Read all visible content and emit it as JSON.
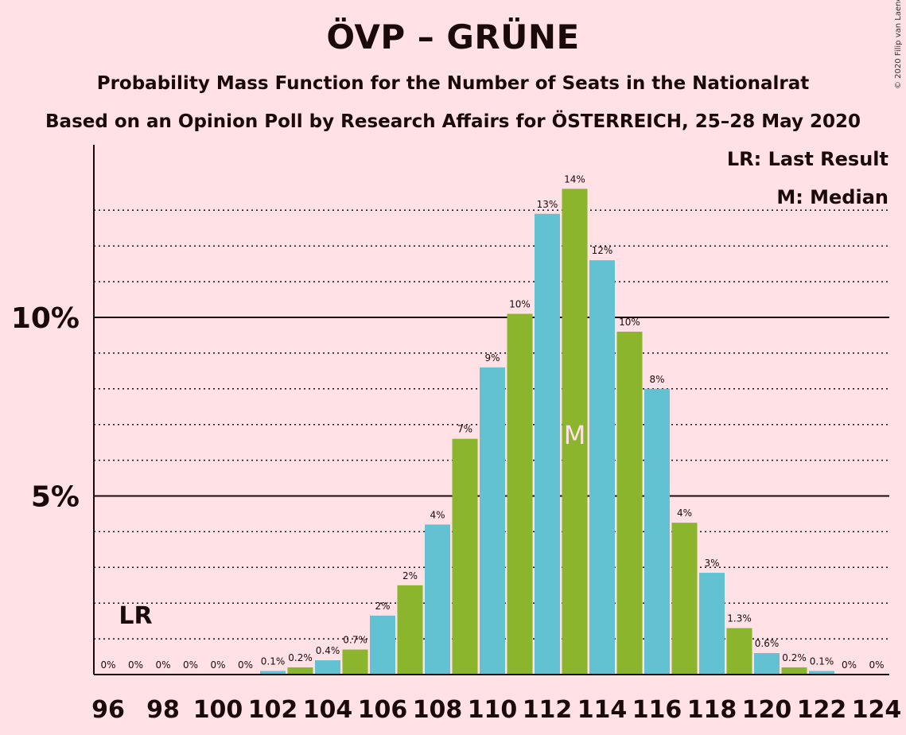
{
  "title": "ÖVP – GRÜNE",
  "subtitle": "Probability Mass Function for the Number of Seats in the Nationalrat",
  "subtitle2": "Based on an Opinion Poll by Research Affairs for ÖSTERREICH, 25–28 May 2020",
  "copyright": "© 2020 Filip van Laenen",
  "legend": {
    "last_result": "LR: Last Result",
    "median": "M: Median"
  },
  "colors": {
    "background": "#ffe1e6",
    "green": "#8ab52c",
    "blue": "#63c2d1",
    "axis": "#1a0a0a"
  },
  "chart_data": {
    "type": "bar",
    "x": [
      96,
      97,
      98,
      99,
      100,
      101,
      102,
      103,
      104,
      105,
      106,
      107,
      108,
      109,
      110,
      111,
      112,
      113,
      114,
      115,
      116,
      117,
      118,
      119,
      120,
      121,
      122,
      123,
      124
    ],
    "values": [
      0,
      0,
      0,
      0,
      0,
      0,
      0.1,
      0.2,
      0.4,
      0.7,
      1.65,
      2.5,
      4.2,
      6.6,
      8.6,
      10.1,
      12.9,
      13.6,
      11.6,
      9.6,
      8.0,
      4.25,
      2.85,
      1.3,
      0.6,
      0.2,
      0.1,
      0,
      0
    ],
    "labels": [
      "0%",
      "0%",
      "0%",
      "0%",
      "0%",
      "0%",
      "0.1%",
      "0.2%",
      "0.4%",
      "0.7%",
      "2%",
      "2%",
      "4%",
      "7%",
      "9%",
      "10%",
      "13%",
      "14%",
      "12%",
      "10%",
      "8%",
      "4%",
      "3%",
      "1.3%",
      "0.6%",
      "0.2%",
      "0.1%",
      "0%",
      "0%"
    ],
    "x_tick_labels": [
      "96",
      "98",
      "100",
      "102",
      "104",
      "106",
      "108",
      "110",
      "112",
      "114",
      "116",
      "118",
      "120",
      "122",
      "124"
    ],
    "y_tick_labels": [
      "5%",
      "10%"
    ],
    "ylim": [
      0,
      14.8
    ],
    "last_result": {
      "seat": 97,
      "label": "LR"
    },
    "median": {
      "seat": 113,
      "label": "M"
    },
    "grid": "dotted lines every 1%, solid at 5% and 10%"
  }
}
